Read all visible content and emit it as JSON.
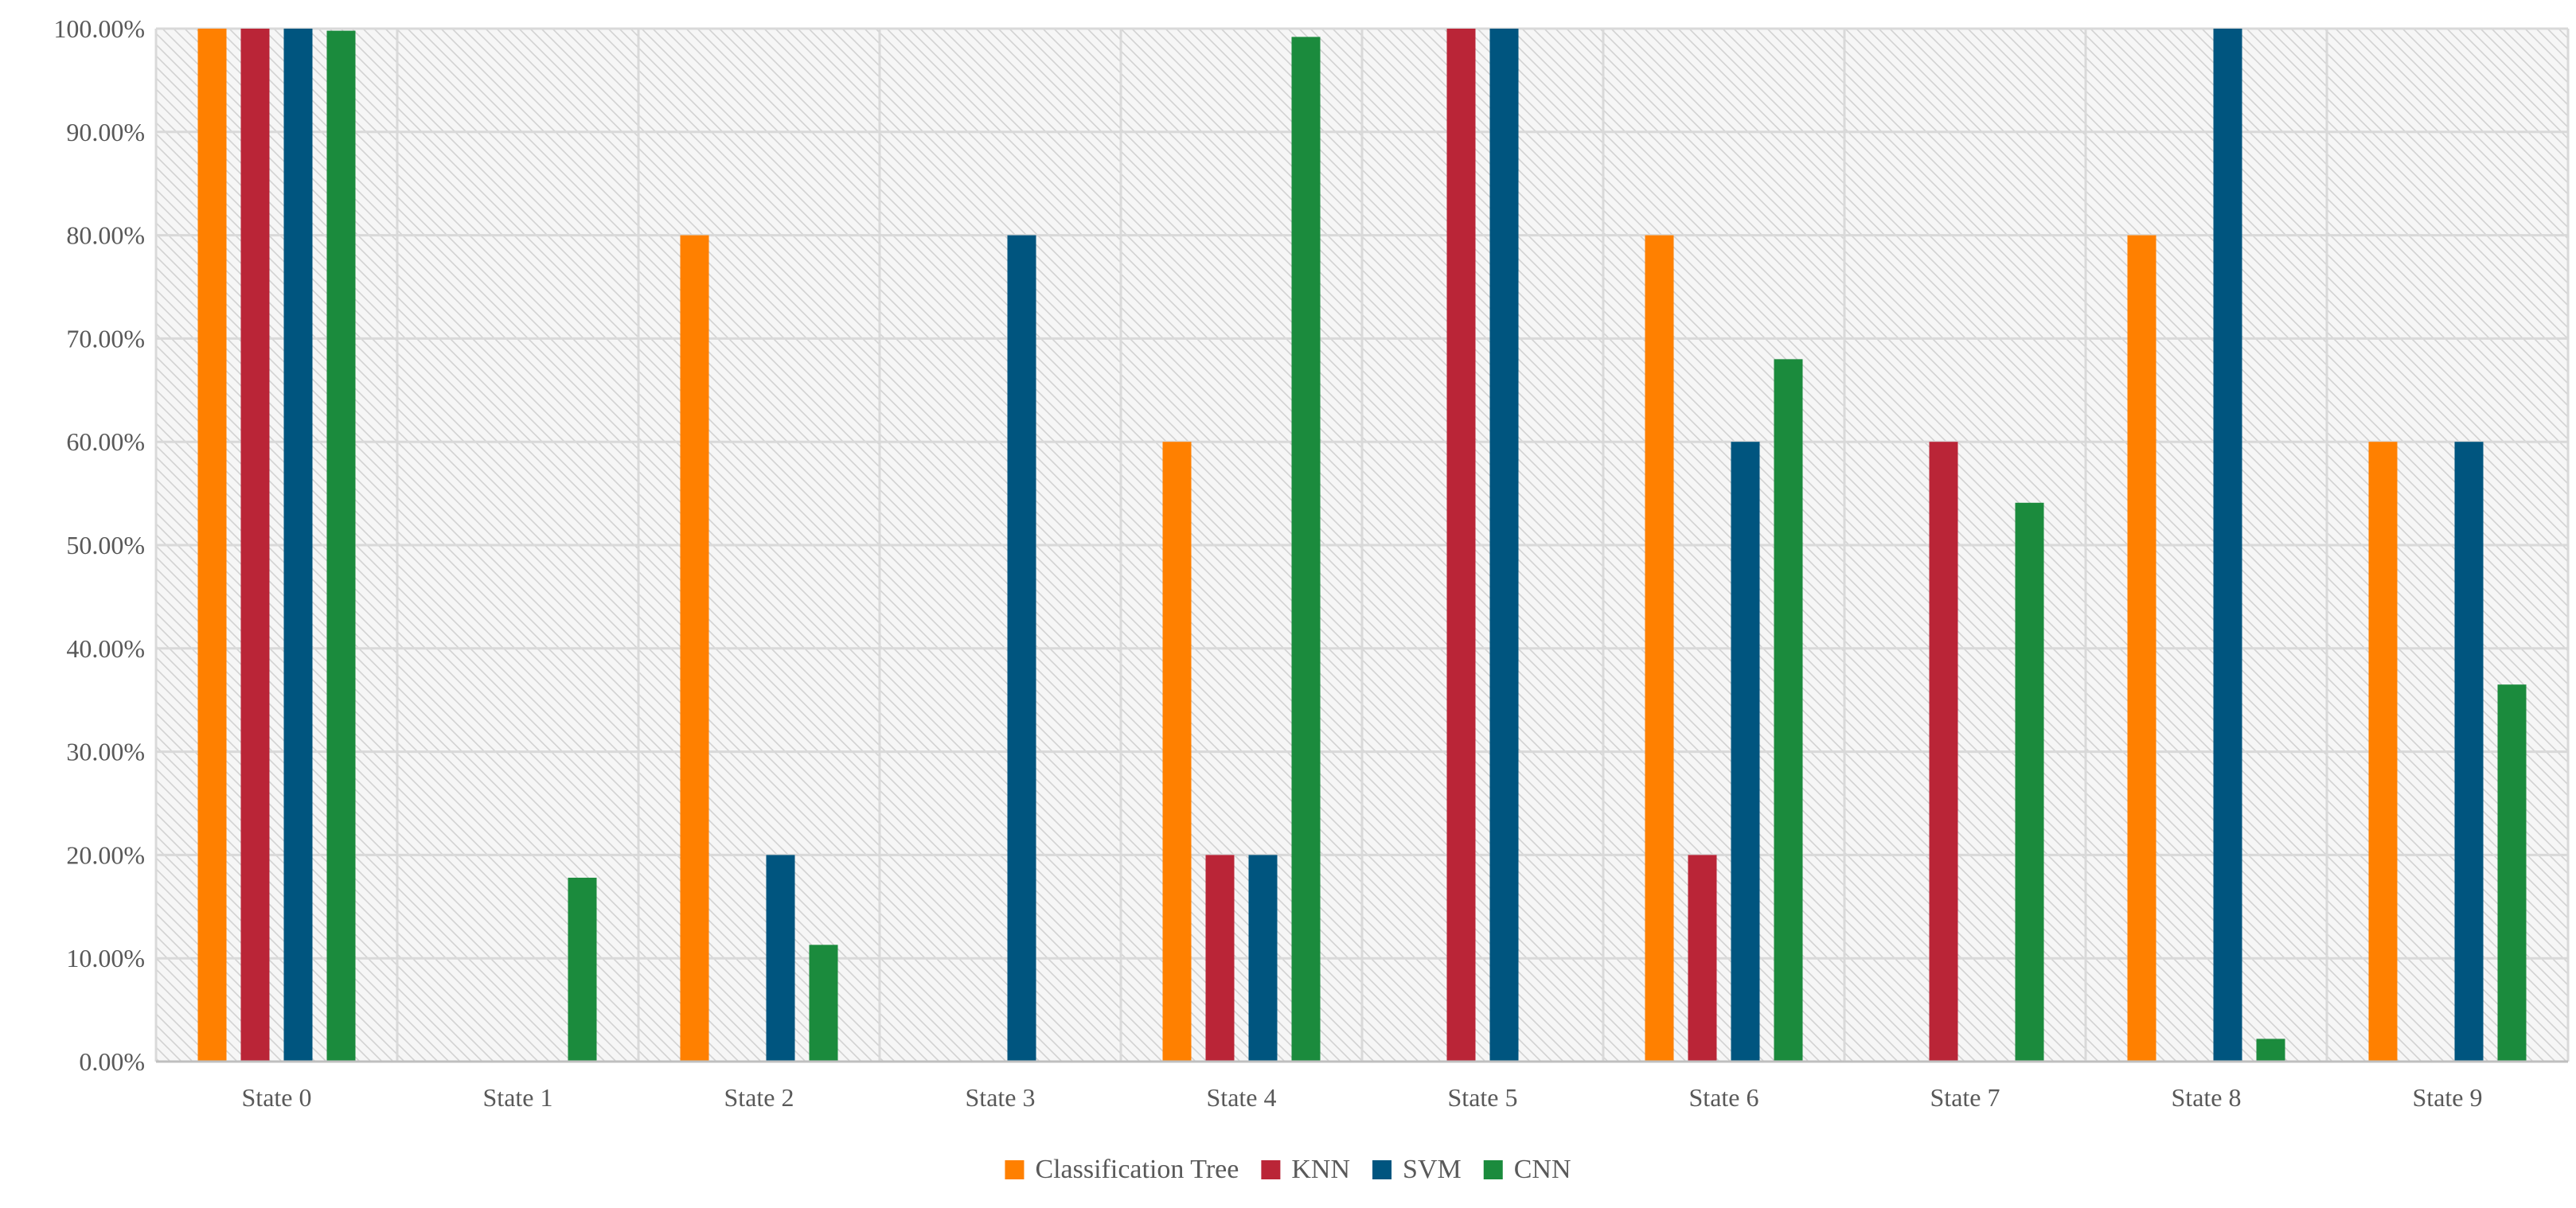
{
  "chart_data": {
    "type": "bar",
    "title": "",
    "xlabel": "",
    "ylabel": "",
    "ylim": [
      0,
      100
    ],
    "ytick_step": 10,
    "ytick_format": "percent_2dp",
    "grid": true,
    "legend_position": "bottom",
    "categories": [
      "State 0",
      "State 1",
      "State 2",
      "State 3",
      "State 4",
      "State 5",
      "State 6",
      "State 7",
      "State 8",
      "State 9"
    ],
    "series": [
      {
        "name": "Classification Tree",
        "color": "#FF8000",
        "values": [
          100,
          0,
          80,
          0,
          60,
          0,
          80,
          0,
          80,
          60
        ]
      },
      {
        "name": "KNN",
        "color": "#BA2537",
        "values": [
          100,
          0,
          0,
          0,
          20,
          100,
          20,
          60,
          0,
          0
        ]
      },
      {
        "name": "SVM",
        "color": "#00557F",
        "values": [
          100,
          0,
          20,
          80,
          20,
          100,
          60,
          0,
          100,
          60
        ]
      },
      {
        "name": "CNN",
        "color": "#1B8B3D",
        "values": [
          99.8,
          17.8,
          11.3,
          0,
          99.2,
          0,
          68,
          54.1,
          2.2,
          36.5
        ]
      }
    ]
  }
}
